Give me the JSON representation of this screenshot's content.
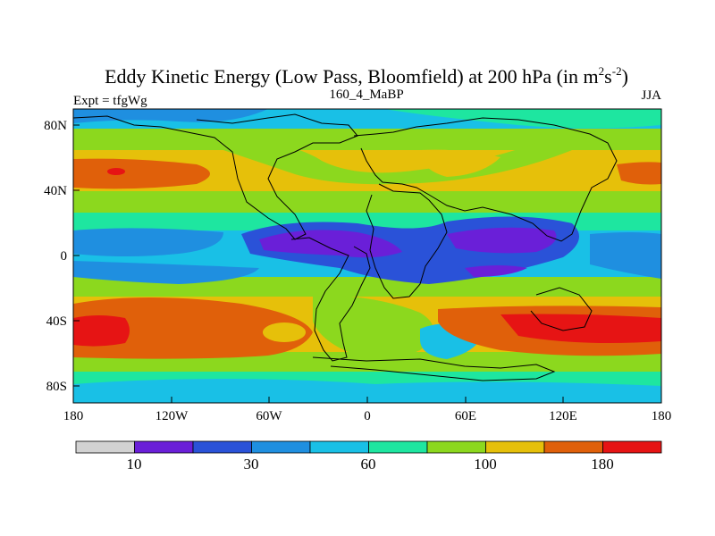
{
  "title": {
    "main": "Eddy Kinetic Energy (Low Pass, Bloomfield) at 200 hPa (in m",
    "sup1": "2",
    "mid": "s",
    "sup2": "-2",
    "close": ")"
  },
  "left_label": "Expt = tfgWg",
  "center_label": "160_4_MaBP",
  "right_label": "JJA",
  "map": {
    "lon_ticks": [
      "180",
      "120W",
      "60W",
      "0",
      "60E",
      "120E",
      "180"
    ],
    "lat_ticks": [
      "80N",
      "40N",
      "0",
      "40S",
      "80S"
    ]
  },
  "colorbar": {
    "colors": [
      "#d2d2d2",
      "#6a1fd8",
      "#2a52d8",
      "#1f8fe0",
      "#19c0e6",
      "#1ee6a0",
      "#8cd81e",
      "#e6c00a",
      "#e0600a",
      "#e61414"
    ],
    "labels": [
      "10",
      "30",
      "60",
      "100",
      "180"
    ]
  }
}
